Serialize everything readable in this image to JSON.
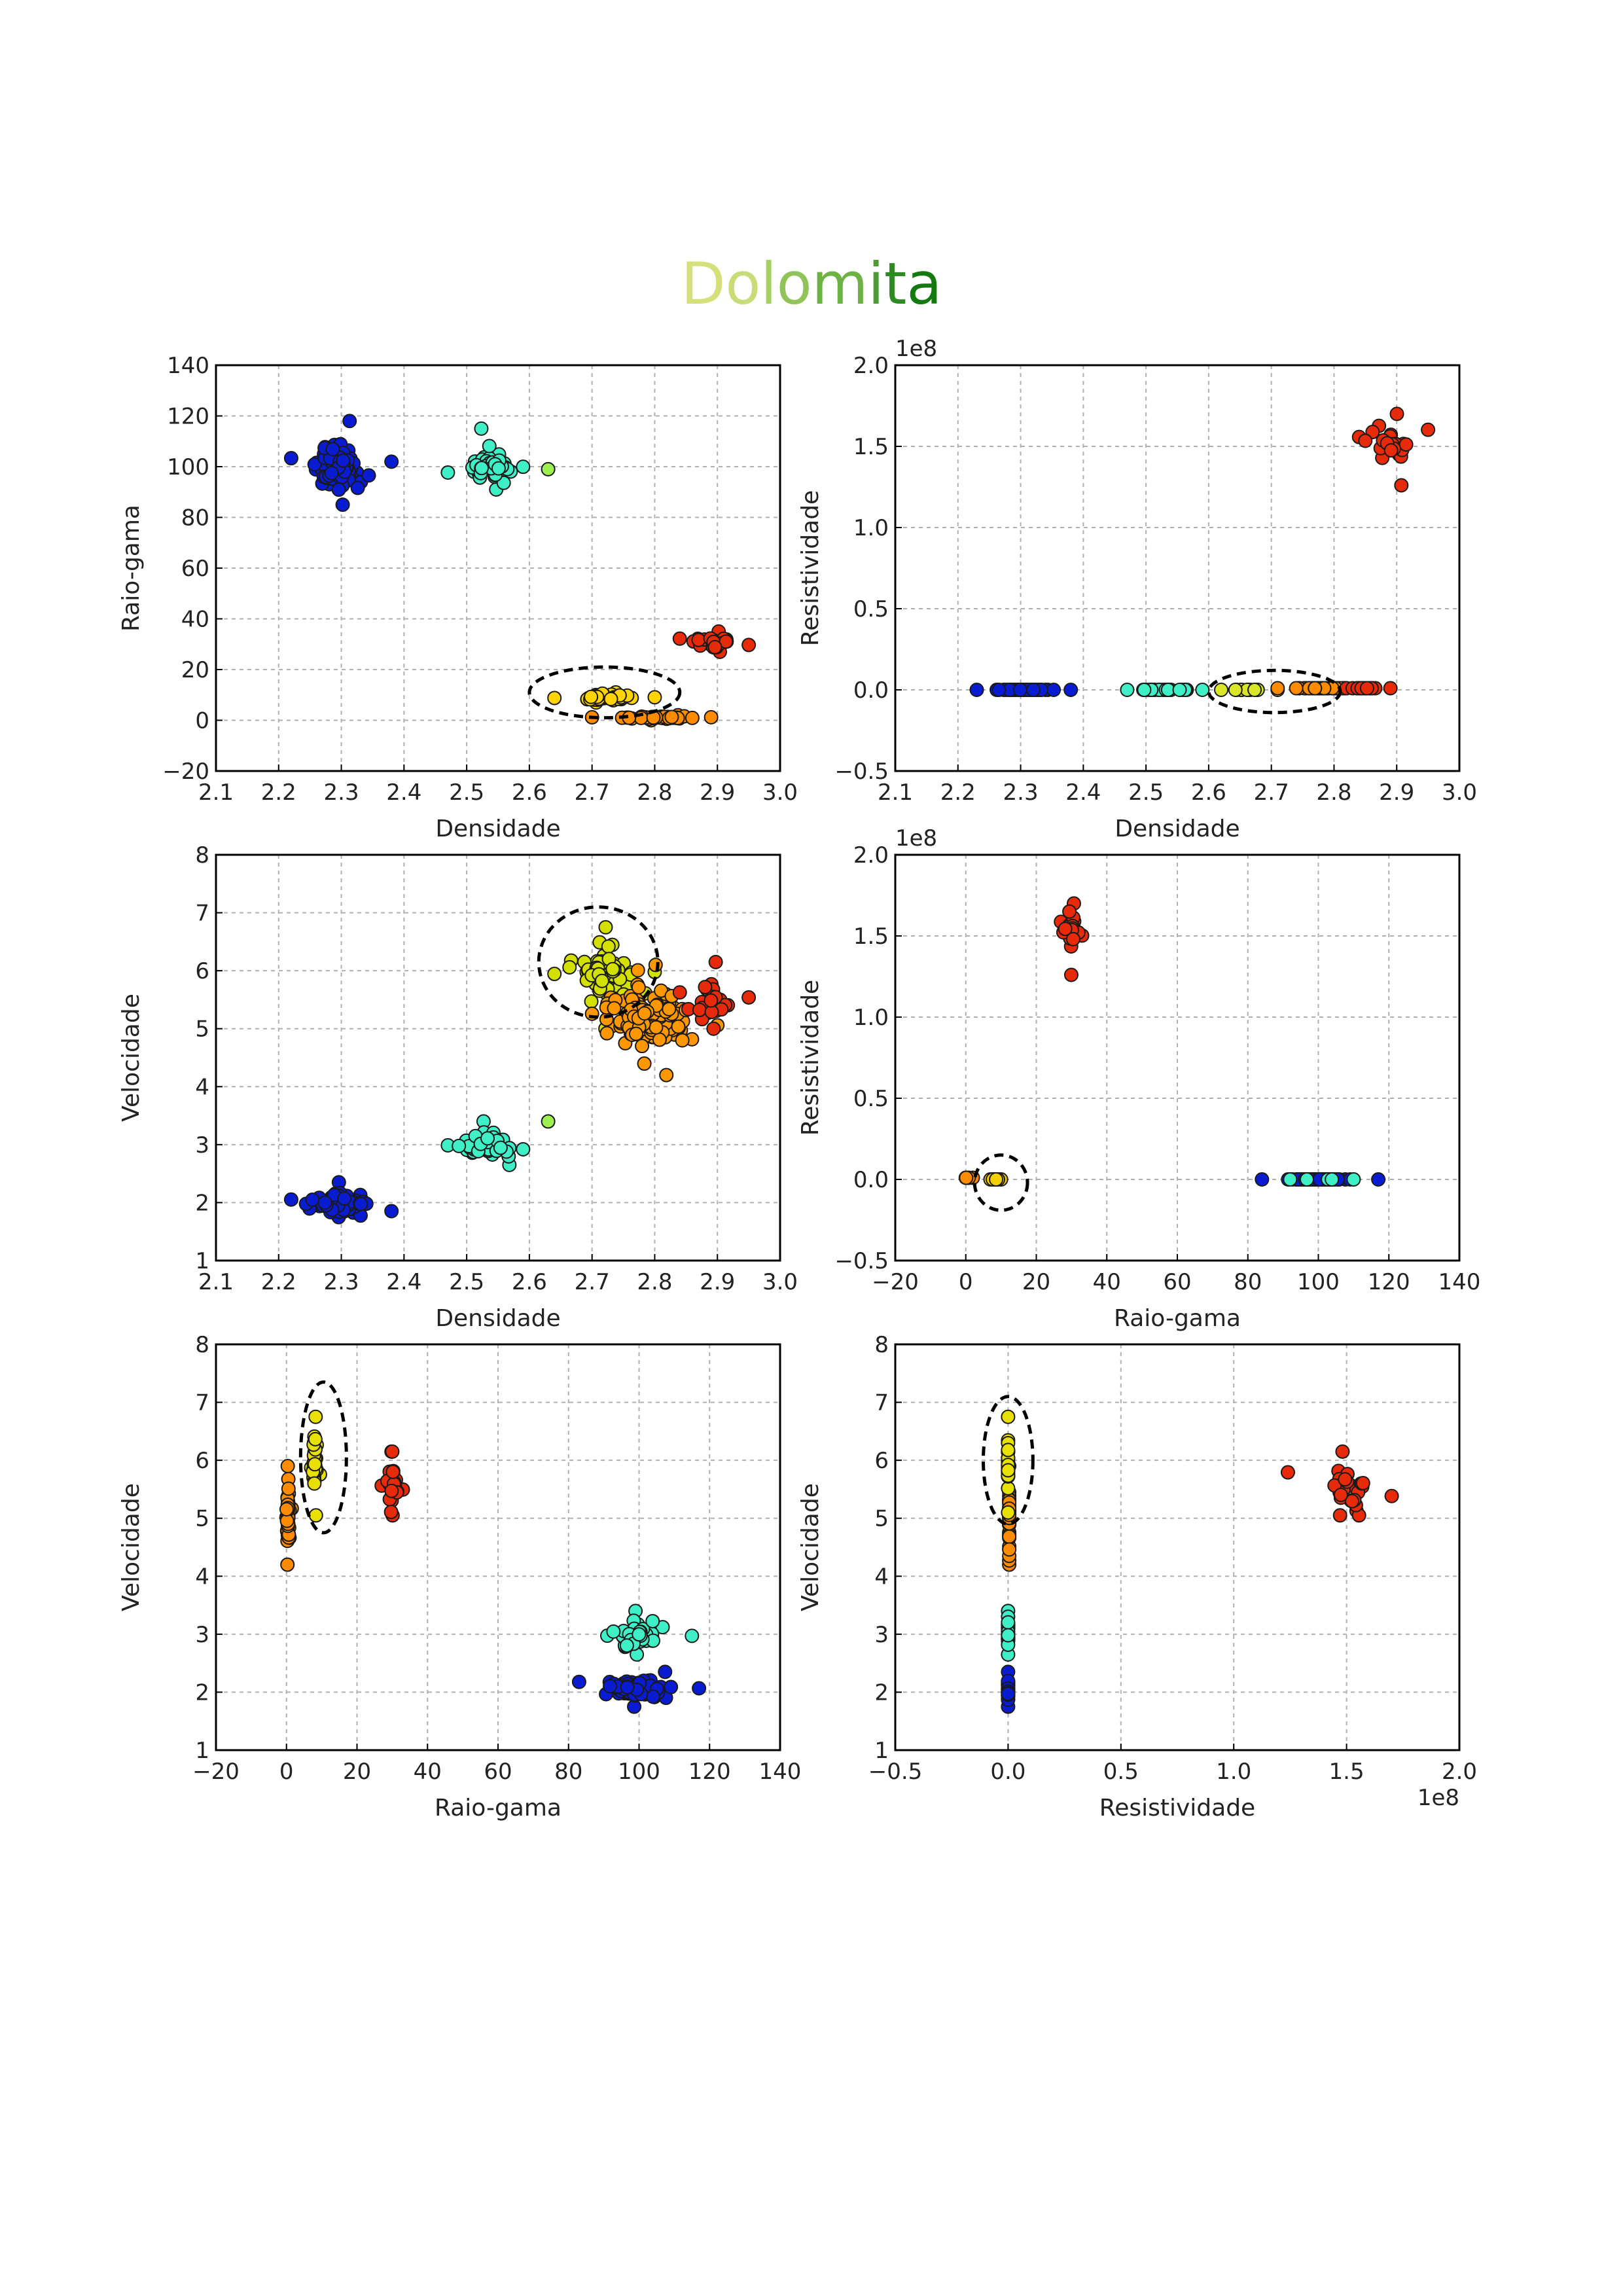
{
  "page": {
    "title_letters": [
      "D",
      "o",
      "l",
      "o",
      "m",
      "i",
      "t",
      "a"
    ],
    "title_colors": [
      "#d6e07a",
      "#c8dc78",
      "#a8cf62",
      "#90c458",
      "#6fb244",
      "#4c9c34",
      "#2e8a22",
      "#137a10"
    ]
  },
  "chart_data": [
    {
      "type": "scatter",
      "id": "dens-rg",
      "xlabel": "Densidade",
      "ylabel": "Raio-gama",
      "xlim": [
        2.1,
        3.0
      ],
      "ylim": [
        -20,
        140
      ],
      "xticks": [
        "2.1",
        "2.2",
        "2.3",
        "2.4",
        "2.5",
        "2.6",
        "2.7",
        "2.8",
        "2.9",
        "3.0"
      ],
      "yticks": [
        "−20",
        "0",
        "20",
        "40",
        "60",
        "80",
        "100",
        "120",
        "140"
      ],
      "exponent": "",
      "grid": true,
      "clusters": [
        {
          "color": "#0a1cd2",
          "n": 95,
          "cx": 2.295,
          "cy": 100,
          "sx": 0.03,
          "sy": 6,
          "xr": [
            2.22,
            2.38
          ],
          "yr": [
            85,
            118
          ]
        },
        {
          "color": "#3ff0c6",
          "n": 45,
          "cx": 2.54,
          "cy": 100,
          "sx": 0.025,
          "sy": 5,
          "xr": [
            2.47,
            2.59
          ],
          "yr": [
            91,
            115
          ]
        },
        {
          "color": "#9ef050",
          "n": 1,
          "cx": 2.63,
          "cy": 99,
          "sx": 0,
          "sy": 0,
          "xr": [
            2.63,
            2.63
          ],
          "yr": [
            99,
            99
          ]
        },
        {
          "color": "#ffd400",
          "n": 40,
          "cx": 2.72,
          "cy": 9,
          "sx": 0.04,
          "sy": 1,
          "xr": [
            2.64,
            2.8
          ],
          "yr": [
            7,
            11
          ]
        },
        {
          "color": "#ff8c00",
          "n": 45,
          "cx": 2.8,
          "cy": 1,
          "sx": 0.05,
          "sy": 0.4,
          "xr": [
            2.7,
            2.89
          ],
          "yr": [
            0,
            2
          ]
        },
        {
          "color": "#e62a0a",
          "n": 28,
          "cx": 2.89,
          "cy": 31,
          "sx": 0.03,
          "sy": 2,
          "xr": [
            2.84,
            2.95
          ],
          "yr": [
            27,
            35
          ]
        }
      ],
      "ellipses": [
        {
          "cx": 2.72,
          "cy": 11,
          "rx": 0.12,
          "ry": 10
        }
      ]
    },
    {
      "type": "scatter",
      "id": "dens-res",
      "xlabel": "Densidade",
      "ylabel": "Resistividade",
      "xlim": [
        2.1,
        3.0
      ],
      "ylim": [
        -0.5,
        2.0
      ],
      "xticks": [
        "2.1",
        "2.2",
        "2.3",
        "2.4",
        "2.5",
        "2.6",
        "2.7",
        "2.8",
        "2.9",
        "3.0"
      ],
      "yticks": [
        "−0.5",
        "0.0",
        "0.5",
        "1.0",
        "1.5",
        "2.0"
      ],
      "exponent": "1e8",
      "exponent_pos": "top",
      "grid": true,
      "clusters": [
        {
          "color": "#0a1cd2",
          "n": 60,
          "cx": 2.3,
          "cy": 0,
          "sx": 0.035,
          "sy": 0,
          "xr": [
            2.23,
            2.38
          ],
          "yr": [
            0,
            0
          ]
        },
        {
          "color": "#3ff0c6",
          "n": 35,
          "cx": 2.53,
          "cy": 0,
          "sx": 0.03,
          "sy": 0,
          "xr": [
            2.47,
            2.59
          ],
          "yr": [
            0,
            0
          ]
        },
        {
          "color": "#d8e828",
          "n": 15,
          "cx": 2.66,
          "cy": 0,
          "sx": 0.02,
          "sy": 0,
          "xr": [
            2.62,
            2.71
          ],
          "yr": [
            0,
            0
          ]
        },
        {
          "color": "#ff8c00",
          "n": 50,
          "cx": 2.78,
          "cy": 0.01,
          "sx": 0.04,
          "sy": 0,
          "xr": [
            2.71,
            2.85
          ],
          "yr": [
            0.01,
            0.01
          ]
        },
        {
          "color": "#e62a0a",
          "n": 22,
          "cx": 2.85,
          "cy": 0.01,
          "sx": 0.02,
          "sy": 0,
          "xr": [
            2.82,
            2.89
          ],
          "yr": [
            0.01,
            0.01
          ]
        },
        {
          "color": "#e62a0a",
          "n": 26,
          "cx": 2.89,
          "cy": 1.53,
          "sx": 0.03,
          "sy": 0.07,
          "xr": [
            2.84,
            2.95
          ],
          "yr": [
            1.26,
            1.7
          ]
        }
      ],
      "ellipses": [
        {
          "cx": 2.705,
          "cy": -0.01,
          "rx": 0.105,
          "ry": 0.13
        }
      ]
    },
    {
      "type": "scatter",
      "id": "dens-vel",
      "xlabel": "Densidade",
      "ylabel": "Velocidade",
      "xlim": [
        2.1,
        3.0
      ],
      "ylim": [
        1,
        8
      ],
      "xticks": [
        "2.1",
        "2.2",
        "2.3",
        "2.4",
        "2.5",
        "2.6",
        "2.7",
        "2.8",
        "2.9",
        "3.0"
      ],
      "yticks": [
        "1",
        "2",
        "3",
        "4",
        "5",
        "6",
        "7",
        "8"
      ],
      "exponent": "",
      "grid": true,
      "clusters": [
        {
          "color": "#0a1cd2",
          "n": 95,
          "cx": 2.3,
          "cy": 2.0,
          "sx": 0.035,
          "sy": 0.12,
          "xr": [
            2.22,
            2.38
          ],
          "yr": [
            1.75,
            2.35
          ]
        },
        {
          "color": "#3ff0c6",
          "n": 50,
          "cx": 2.535,
          "cy": 3.0,
          "sx": 0.03,
          "sy": 0.18,
          "xr": [
            2.47,
            2.59
          ],
          "yr": [
            2.65,
            3.4
          ]
        },
        {
          "color": "#9ef050",
          "n": 1,
          "cx": 2.63,
          "cy": 3.4,
          "sx": 0,
          "sy": 0,
          "xr": [
            2.63,
            2.63
          ],
          "yr": [
            3.4,
            3.4
          ]
        },
        {
          "color": "#d4e000",
          "n": 75,
          "cx": 2.72,
          "cy": 5.9,
          "sx": 0.035,
          "sy": 0.35,
          "xr": [
            2.64,
            2.8
          ],
          "yr": [
            5.0,
            6.75
          ]
        },
        {
          "color": "#ff9800",
          "n": 130,
          "cx": 2.79,
          "cy": 5.2,
          "sx": 0.05,
          "sy": 0.45,
          "xr": [
            2.7,
            2.9
          ],
          "yr": [
            4.2,
            6.1
          ]
        },
        {
          "color": "#e62a0a",
          "n": 30,
          "cx": 2.89,
          "cy": 5.5,
          "sx": 0.03,
          "sy": 0.3,
          "xr": [
            2.84,
            2.95
          ],
          "yr": [
            5.0,
            6.15
          ]
        }
      ],
      "ellipses": [
        {
          "cx": 2.71,
          "cy": 6.15,
          "rx": 0.095,
          "ry": 0.95
        }
      ]
    },
    {
      "type": "scatter",
      "id": "rg-res",
      "xlabel": "Raio-gama",
      "ylabel": "Resistividade",
      "xlim": [
        -20,
        140
      ],
      "ylim": [
        -0.5,
        2.0
      ],
      "xticks": [
        "−20",
        "0",
        "20",
        "40",
        "60",
        "80",
        "100",
        "120",
        "140"
      ],
      "yticks": [
        "−0.5",
        "0.0",
        "0.5",
        "1.0",
        "1.5",
        "2.0"
      ],
      "exponent": "1e8",
      "exponent_pos": "top",
      "grid": true,
      "clusters": [
        {
          "color": "#ff8c00",
          "n": 6,
          "cx": 0.5,
          "cy": 0.01,
          "sx": 0.6,
          "sy": 0,
          "xr": [
            0,
            2
          ],
          "yr": [
            0.01,
            0.01
          ]
        },
        {
          "color": "#f5d000",
          "n": 8,
          "cx": 8.5,
          "cy": 0.0,
          "sx": 0.8,
          "sy": 0,
          "xr": [
            7,
            10
          ],
          "yr": [
            0,
            0
          ]
        },
        {
          "color": "#e62a0a",
          "n": 28,
          "cx": 30,
          "cy": 1.53,
          "sx": 1.5,
          "sy": 0.08,
          "xr": [
            27,
            33
          ],
          "yr": [
            1.26,
            1.7
          ]
        },
        {
          "color": "#0a1cd2",
          "n": 90,
          "cx": 100,
          "cy": 0.0,
          "sx": 7,
          "sy": 0,
          "xr": [
            84,
            117
          ],
          "yr": [
            0,
            0
          ]
        },
        {
          "color": "#3ff0c6",
          "n": 5,
          "cx": 100,
          "cy": 0.0,
          "sx": 5,
          "sy": 0,
          "xr": [
            92,
            110
          ],
          "yr": [
            0,
            0
          ]
        }
      ],
      "ellipses": [
        {
          "cx": 10,
          "cy": -0.02,
          "rx": 7.5,
          "ry": 0.17
        }
      ]
    },
    {
      "type": "scatter",
      "id": "rg-vel",
      "xlabel": "Raio-gama",
      "ylabel": "Velocidade",
      "xlim": [
        -20,
        140
      ],
      "ylim": [
        1,
        8
      ],
      "xticks": [
        "−20",
        "0",
        "20",
        "40",
        "60",
        "80",
        "100",
        "120",
        "140"
      ],
      "yticks": [
        "1",
        "2",
        "3",
        "4",
        "5",
        "6",
        "7",
        "8"
      ],
      "exponent": "",
      "grid": true,
      "clusters": [
        {
          "color": "#ff8c00",
          "n": 45,
          "cx": 0.5,
          "cy": 5.0,
          "sx": 0.3,
          "sy": 0.45,
          "xr": [
            0,
            1.5
          ],
          "yr": [
            4.2,
            5.9
          ]
        },
        {
          "color": "#e8e000",
          "n": 35,
          "cx": 8,
          "cy": 5.9,
          "sx": 0.4,
          "sy": 0.4,
          "xr": [
            7,
            9.5
          ],
          "yr": [
            5.05,
            6.75
          ]
        },
        {
          "color": "#e62a0a",
          "n": 28,
          "cx": 30,
          "cy": 5.6,
          "sx": 1.5,
          "sy": 0.3,
          "xr": [
            27,
            33
          ],
          "yr": [
            5.05,
            6.15
          ]
        },
        {
          "color": "#0a1cd2",
          "n": 95,
          "cx": 100,
          "cy": 2.05,
          "sx": 6,
          "sy": 0.12,
          "xr": [
            83,
            117
          ],
          "yr": [
            1.75,
            2.35
          ]
        },
        {
          "color": "#3ff0c6",
          "n": 45,
          "cx": 100,
          "cy": 3.0,
          "sx": 5,
          "sy": 0.18,
          "xr": [
            91,
            115
          ],
          "yr": [
            2.65,
            3.4
          ]
        }
      ],
      "ellipses": [
        {
          "cx": 10.5,
          "cy": 6.05,
          "rx": 6.5,
          "ry": 1.3
        }
      ]
    },
    {
      "type": "scatter",
      "id": "res-vel",
      "xlabel": "Resistividade",
      "ylabel": "Velocidade",
      "xlim": [
        -0.5,
        2.0
      ],
      "ylim": [
        1,
        8
      ],
      "xticks": [
        "−0.5",
        "0.0",
        "0.5",
        "1.0",
        "1.5",
        "2.0"
      ],
      "yticks": [
        "1",
        "2",
        "3",
        "4",
        "5",
        "6",
        "7",
        "8"
      ],
      "exponent": "1e8",
      "exponent_pos": "bottom",
      "grid": true,
      "clusters": [
        {
          "color": "#0a1cd2",
          "n": 35,
          "cx": 0.0,
          "cy": 2.05,
          "sx": 0,
          "sy": 0.15,
          "xr": [
            0,
            0
          ],
          "yr": [
            1.75,
            2.35
          ]
        },
        {
          "color": "#3ff0c6",
          "n": 25,
          "cx": 0.0,
          "cy": 3.0,
          "sx": 0,
          "sy": 0.18,
          "xr": [
            0,
            0
          ],
          "yr": [
            2.65,
            3.4
          ]
        },
        {
          "color": "#ff8c00",
          "n": 40,
          "cx": 0.005,
          "cy": 5.0,
          "sx": 0,
          "sy": 0.45,
          "xr": [
            0.005,
            0.005
          ],
          "yr": [
            4.2,
            5.9
          ]
        },
        {
          "color": "#e8e000",
          "n": 25,
          "cx": 0.0,
          "cy": 6.0,
          "sx": 0,
          "sy": 0.35,
          "xr": [
            0,
            0
          ],
          "yr": [
            5.1,
            6.75
          ]
        },
        {
          "color": "#e62a0a",
          "n": 28,
          "cx": 1.52,
          "cy": 5.5,
          "sx": 0.08,
          "sy": 0.3,
          "xr": [
            1.24,
            1.7
          ],
          "yr": [
            5.05,
            6.15
          ]
        }
      ],
      "ellipses": [
        {
          "cx": 0.0,
          "cy": 6.0,
          "rx": 0.11,
          "ry": 1.1
        }
      ]
    }
  ]
}
